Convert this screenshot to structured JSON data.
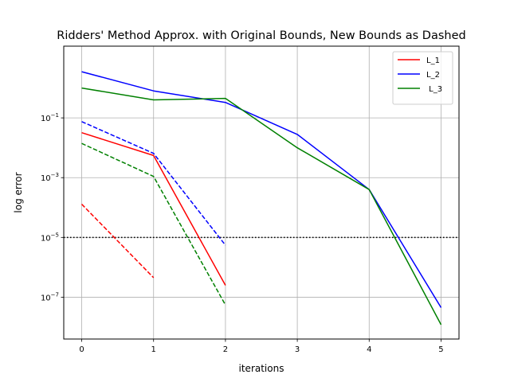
{
  "chart_data": {
    "type": "line",
    "title": "Ridders' Method Approx. with Original Bounds, New Bounds as Dashed",
    "xlabel": "iterations",
    "ylabel": "log error",
    "xlim": [
      -0.25,
      5.25
    ],
    "ylim_log10": [
      -8.4,
      1.4
    ],
    "yscale": "log",
    "grid": true,
    "legend_position": "top-right",
    "x_ticks": [
      {
        "value": 0,
        "label": "0"
      },
      {
        "value": 1,
        "label": "1"
      },
      {
        "value": 2,
        "label": "2"
      },
      {
        "value": 3,
        "label": "3"
      },
      {
        "value": 4,
        "label": "4"
      },
      {
        "value": 5,
        "label": "5"
      }
    ],
    "y_ticks": [
      {
        "exp": -1,
        "label": "10",
        "sup": "−1"
      },
      {
        "exp": -3,
        "label": "10",
        "sup": "−3"
      },
      {
        "exp": -5,
        "label": "10",
        "sup": "−5"
      },
      {
        "exp": -7,
        "label": "10",
        "sup": "−7"
      }
    ],
    "reference_line": {
      "y": 1e-05,
      "style": "dotted",
      "color": "#000000"
    },
    "series": [
      {
        "name": "L_1",
        "color": "#ff0000",
        "style": "solid",
        "in_legend": true,
        "x": [
          0,
          1,
          2
        ],
        "y": [
          0.032,
          0.0055,
          2.5e-07
        ]
      },
      {
        "name": "L_2",
        "color": "#0000ff",
        "style": "solid",
        "in_legend": true,
        "x": [
          0,
          1,
          2,
          3,
          4,
          5
        ],
        "y": [
          3.5,
          0.8,
          0.33,
          0.028,
          0.0004,
          4.5e-08
        ]
      },
      {
        "name": " L_3",
        "color": "#008000",
        "style": "solid",
        "in_legend": true,
        "x": [
          0,
          1,
          2,
          3,
          4,
          5
        ],
        "y": [
          1.0,
          0.4,
          0.45,
          0.01,
          0.0004,
          1.2e-08
        ]
      },
      {
        "color": "#ff0000",
        "style": "dashed",
        "in_legend": false,
        "x": [
          0,
          1
        ],
        "y": [
          0.00013,
          4.5e-07
        ]
      },
      {
        "color": "#0000ff",
        "style": "dashed",
        "in_legend": false,
        "x": [
          0,
          1,
          2
        ],
        "y": [
          0.075,
          0.0065,
          5.5e-06
        ]
      },
      {
        "color": "#008000",
        "style": "dashed",
        "in_legend": false,
        "x": [
          0,
          1,
          2
        ],
        "y": [
          0.014,
          0.0011,
          5.5e-08
        ]
      }
    ]
  }
}
